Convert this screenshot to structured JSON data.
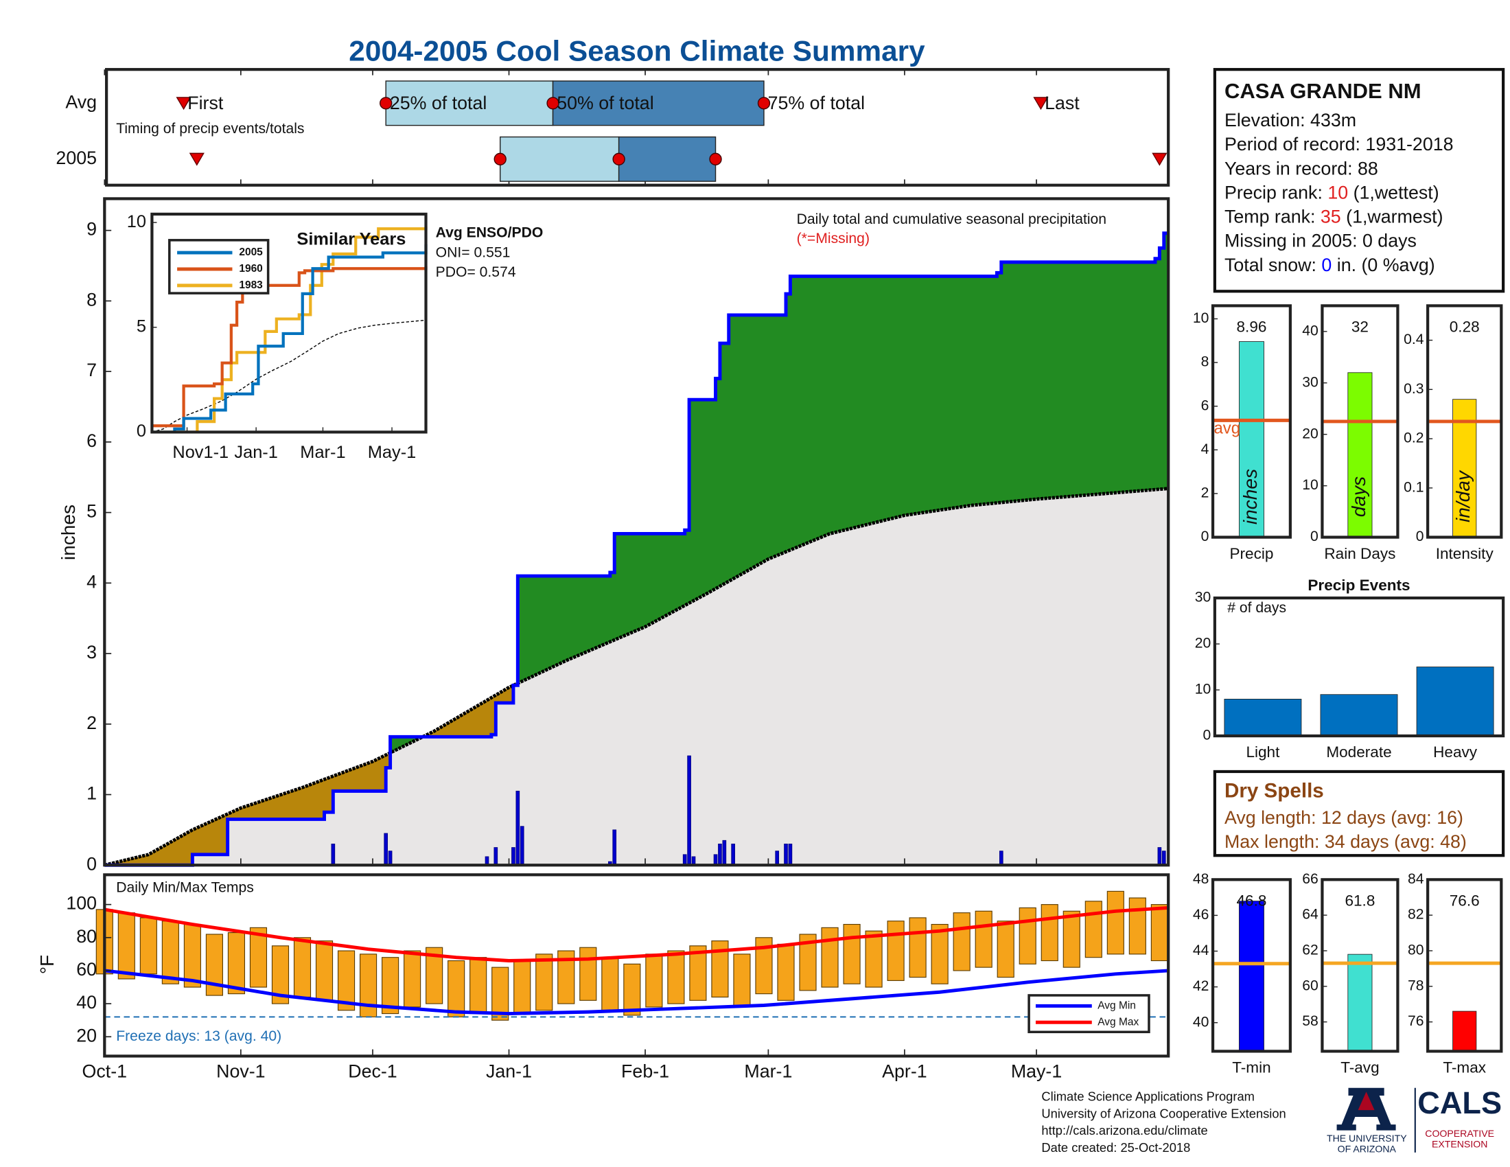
{
  "title": "2004-2005 Cool Season Climate Summary",
  "station": {
    "name": "CASA GRANDE NM",
    "lines": [
      [
        {
          "text": "Elevation: 433m"
        }
      ],
      [
        {
          "text": "Period of record: 1931-2018"
        }
      ],
      [
        {
          "text": "Years in record: 88"
        }
      ],
      [
        {
          "text": "Precip rank: "
        },
        {
          "text": "10",
          "color": "#e02020"
        },
        {
          "text": " (1,wettest)"
        }
      ],
      [
        {
          "text": "Temp rank: "
        },
        {
          "text": "35",
          "color": "#e02020"
        },
        {
          "text": " (1,warmest)"
        }
      ],
      [
        {
          "text": "Missing in 2005: 0 days"
        }
      ],
      [
        {
          "text": "Total snow: "
        },
        {
          "text": "0",
          "color": "#0000ff"
        },
        {
          "text": " in. (0 %avg)"
        }
      ]
    ]
  },
  "dry_spells": {
    "title": "Dry Spells",
    "lines": [
      "Avg length: 12 days (avg: 16)",
      "Max length: 34 days (avg: 48)"
    ],
    "color": "#8b4513"
  },
  "footer": [
    "Climate Science Applications Program",
    "University of Arizona Cooperative Extension",
    "http://cals.arizona.edu/climate",
    "Date created: 25-Oct-2018"
  ],
  "logos": {
    "university": [
      "THE UNIVERSITY",
      "OF ARIZONA"
    ],
    "cals": "CALS",
    "extension": [
      "COOPERATIVE",
      "EXTENSION"
    ]
  },
  "chart_data": [
    {
      "type": "timing",
      "xlim": [
        0,
        242
      ],
      "note": "Timing of precip events/totals",
      "box_colors": [
        "#add8e6",
        "#4682b4"
      ],
      "marker_color": "#e00000",
      "marker_labels": {
        "first": "First",
        "p25": "25% of total",
        "p50": "50% of total",
        "p75": "75% of total",
        "last": "Last"
      },
      "rows": [
        {
          "label": "Avg",
          "first": 18,
          "p25": 64,
          "p50": 102,
          "p75": 150,
          "last": 213
        },
        {
          "label": "2005",
          "first": 21,
          "p25": 90,
          "p50": 117,
          "p75": 139,
          "last": 240
        }
      ]
    },
    {
      "type": "area",
      "xlim": [
        0,
        242
      ],
      "ylim": [
        0,
        9.45
      ],
      "yticks": [
        0,
        1,
        2,
        3,
        4,
        5,
        6,
        7,
        8,
        9
      ],
      "ylabel": "inches",
      "annotations": [
        "Daily total and cumulative seasonal precipitation",
        "(*=Missing)"
      ],
      "annotation_colors": [
        "#111111",
        "#e02020"
      ],
      "colors": {
        "above": "#228b22",
        "below": "#b8860b",
        "base": "#e8e6e6"
      },
      "cumulative_2005": {
        "color": "#0000ff",
        "x": [
          0,
          20,
          28,
          50,
          52,
          64,
          65,
          88,
          89,
          93,
          94,
          115,
          116,
          132,
          133,
          139,
          140,
          142,
          155,
          156,
          203,
          204,
          239,
          240,
          241,
          242
        ],
        "values": [
          0,
          0.15,
          0.65,
          0.75,
          1.05,
          1.38,
          1.82,
          1.85,
          2.3,
          2.55,
          4.1,
          4.15,
          4.7,
          4.75,
          6.6,
          6.9,
          7.4,
          7.8,
          8.1,
          8.35,
          8.4,
          8.55,
          8.6,
          8.75,
          8.96,
          8.96
        ]
      },
      "cumulative_avg": {
        "color": "#000000",
        "x": [
          0,
          10,
          20,
          31,
          45,
          61,
          75,
          92,
          105,
          123,
          137,
          151,
          165,
          182,
          197,
          212,
          228,
          242
        ],
        "values": [
          0,
          0.15,
          0.5,
          0.81,
          1.1,
          1.47,
          1.9,
          2.52,
          2.9,
          3.38,
          3.85,
          4.34,
          4.7,
          4.96,
          5.1,
          5.19,
          5.27,
          5.34
        ]
      },
      "daily": {
        "color": "#0000cd",
        "x": [
          52,
          64,
          65,
          87,
          89,
          93,
          94,
          95,
          115,
          116,
          132,
          133,
          134,
          139,
          140,
          141,
          143,
          153,
          155,
          156,
          204,
          240,
          241
        ],
        "values": [
          0.3,
          0.45,
          0.2,
          0.12,
          0.25,
          0.25,
          1.05,
          0.55,
          0.05,
          0.5,
          0.15,
          1.55,
          0.12,
          0.15,
          0.3,
          0.35,
          0.3,
          0.2,
          0.3,
          0.3,
          0.2,
          0.25,
          0.2
        ]
      }
    },
    {
      "type": "line",
      "title": "Similar Years",
      "xlim": [
        0,
        242
      ],
      "ylim": [
        0,
        10.4
      ],
      "yticks": [
        0,
        5,
        10
      ],
      "xticks": [
        {
          "value": 31,
          "label": "Nov1-1"
        },
        {
          "value": 92,
          "label": "Jan-1"
        },
        {
          "value": 151,
          "label": "Mar-1"
        },
        {
          "value": 212,
          "label": "May-1"
        }
      ],
      "annotations": [
        "Avg ENSO/PDO",
        "ONI= 0.551",
        "PDO= 0.574"
      ],
      "series": [
        {
          "name": "2005",
          "color": "#0072bd",
          "x": [
            0,
            20,
            28,
            52,
            65,
            89,
            94,
            116,
            133,
            142,
            156,
            204,
            242
          ],
          "values": [
            0,
            0.15,
            0.65,
            1.05,
            1.82,
            2.3,
            4.1,
            4.7,
            6.6,
            7.8,
            8.35,
            8.55,
            8.96
          ]
        },
        {
          "name": "1960",
          "color": "#d95319",
          "x": [
            0,
            25,
            28,
            55,
            62,
            70,
            75,
            80,
            88,
            130,
            135,
            160,
            200,
            242
          ],
          "values": [
            0.3,
            0.3,
            2.2,
            2.3,
            3.3,
            5.1,
            6.2,
            7.0,
            7.0,
            7.6,
            7.7,
            7.8,
            7.8,
            7.9
          ]
        },
        {
          "name": "1983",
          "color": "#edb120",
          "x": [
            0,
            30,
            40,
            55,
            62,
            70,
            75,
            95,
            100,
            110,
            130,
            140,
            150,
            160,
            180,
            200,
            242
          ],
          "values": [
            0,
            0,
            0.5,
            1.6,
            2.5,
            3.3,
            3.8,
            3.8,
            4.8,
            5.4,
            5.6,
            7.0,
            8.0,
            8.5,
            9.3,
            9.7,
            9.8
          ]
        }
      ],
      "avg": {
        "color": "#000000",
        "x": [
          0,
          10,
          20,
          31,
          45,
          61,
          75,
          92,
          105,
          123,
          137,
          151,
          165,
          182,
          197,
          212,
          228,
          242
        ],
        "values": [
          0,
          0.15,
          0.5,
          0.81,
          1.1,
          1.47,
          1.9,
          2.52,
          2.9,
          3.38,
          3.85,
          4.34,
          4.7,
          4.96,
          5.1,
          5.19,
          5.27,
          5.34
        ]
      }
    },
    {
      "type": "range_bar",
      "title": "Daily Min/Max Temps",
      "ylabel": "°F",
      "xlim": [
        0,
        242
      ],
      "ylim": [
        8.3,
        118
      ],
      "yticks": [
        20,
        40,
        60,
        80,
        100
      ],
      "xticks": [
        {
          "value": 0,
          "label": "Oct-1"
        },
        {
          "value": 31,
          "label": "Nov-1"
        },
        {
          "value": 61,
          "label": "Dec-1"
        },
        {
          "value": 92,
          "label": "Jan-1"
        },
        {
          "value": 123,
          "label": "Feb-1"
        },
        {
          "value": 151,
          "label": "Mar-1"
        },
        {
          "value": 182,
          "label": "Apr-1"
        },
        {
          "value": 212,
          "label": "May-1"
        }
      ],
      "bar_color": "#f5a31a",
      "freeze": 32,
      "freeze_label": "Freeze days: 13 (avg. 40)",
      "freeze_color": "#1f6fb4",
      "x": [
        0,
        5,
        10,
        15,
        20,
        25,
        30,
        35,
        40,
        45,
        50,
        55,
        60,
        65,
        70,
        75,
        80,
        85,
        90,
        95,
        100,
        105,
        110,
        115,
        120,
        125,
        130,
        135,
        140,
        145,
        150,
        155,
        160,
        165,
        170,
        175,
        180,
        185,
        190,
        195,
        200,
        205,
        210,
        215,
        220,
        225,
        230,
        235,
        240
      ],
      "max": [
        97,
        95,
        92,
        90,
        88,
        82,
        83,
        86,
        75,
        80,
        78,
        72,
        70,
        68,
        72,
        74,
        66,
        68,
        62,
        66,
        70,
        72,
        74,
        68,
        64,
        70,
        72,
        75,
        78,
        70,
        80,
        76,
        82,
        86,
        88,
        84,
        90,
        92,
        88,
        95,
        96,
        90,
        98,
        100,
        96,
        102,
        108,
        104,
        100
      ],
      "min": [
        58,
        55,
        58,
        52,
        50,
        45,
        46,
        50,
        40,
        44,
        42,
        36,
        32,
        34,
        38,
        40,
        32,
        34,
        30,
        34,
        36,
        40,
        42,
        36,
        33,
        38,
        40,
        42,
        44,
        38,
        46,
        42,
        48,
        50,
        52,
        50,
        54,
        56,
        52,
        60,
        62,
        56,
        64,
        66,
        62,
        68,
        70,
        70,
        66
      ],
      "avg_min": {
        "name": "Avg Min",
        "color": "#0000ff",
        "x": [
          0,
          20,
          40,
          60,
          80,
          92,
          110,
          130,
          150,
          170,
          190,
          210,
          230,
          242
        ],
        "values": [
          60,
          54,
          45,
          39,
          35,
          34,
          35,
          37,
          39,
          43,
          47,
          53,
          58,
          60
        ]
      },
      "avg_max": {
        "name": "Avg Max",
        "color": "#ff0000",
        "x": [
          0,
          20,
          40,
          60,
          80,
          92,
          110,
          130,
          150,
          170,
          190,
          210,
          230,
          242
        ],
        "values": [
          97,
          88,
          80,
          73,
          68,
          66,
          67,
          70,
          74,
          80,
          84,
          90,
          96,
          98
        ]
      }
    },
    {
      "type": "bar",
      "categories": [
        "Precip"
      ],
      "values": [
        8.96
      ],
      "color": "#40e0d0",
      "avg": 5.35,
      "avg_color": "#e2571e",
      "avg_label": "avg",
      "bar_label": "inches",
      "ylim": [
        0,
        10.6
      ],
      "yticks": [
        0,
        2,
        4,
        6,
        8,
        10
      ]
    },
    {
      "type": "bar",
      "categories": [
        "Rain Days"
      ],
      "values": [
        32
      ],
      "color": "#7cfc00",
      "avg": 22.5,
      "avg_color": "#e2571e",
      "bar_label": "days",
      "ylim": [
        0,
        45
      ],
      "yticks": [
        0,
        10,
        20,
        30,
        40
      ]
    },
    {
      "type": "bar",
      "categories": [
        "Intensity"
      ],
      "values": [
        0.28
      ],
      "color": "#ffd700",
      "avg": 0.235,
      "avg_color": "#e2571e",
      "bar_label": "in/day",
      "ylim": [
        0,
        0.47
      ],
      "yticks": [
        0,
        0.1,
        0.2,
        0.3,
        0.4
      ]
    },
    {
      "type": "bar",
      "title": "Precip Events",
      "note": "# of days",
      "categories": [
        "Light",
        "Moderate",
        "Heavy"
      ],
      "values": [
        8,
        9,
        15
      ],
      "color": "#0070c0",
      "ylim": [
        0,
        30
      ],
      "yticks": [
        0,
        10,
        20,
        30
      ]
    },
    {
      "type": "bar",
      "categories": [
        "T-min"
      ],
      "values": [
        46.8
      ],
      "color": "#0000ff",
      "avg": 43.3,
      "avg_color": "#f5a623",
      "ylim": [
        38.4,
        48
      ],
      "yticks": [
        40,
        42,
        44,
        46,
        48
      ]
    },
    {
      "type": "bar",
      "categories": [
        "T-avg"
      ],
      "values": [
        61.8
      ],
      "color": "#40e0d0",
      "avg": 61.3,
      "avg_color": "#f5a623",
      "ylim": [
        56.35,
        66
      ],
      "yticks": [
        58,
        60,
        62,
        64,
        66
      ]
    },
    {
      "type": "bar",
      "categories": [
        "T-max"
      ],
      "values": [
        76.6
      ],
      "color": "#ff0000",
      "avg": 79.3,
      "avg_color": "#f5a623",
      "ylim": [
        74.35,
        84
      ],
      "yticks": [
        76,
        78,
        80,
        82,
        84
      ]
    }
  ]
}
